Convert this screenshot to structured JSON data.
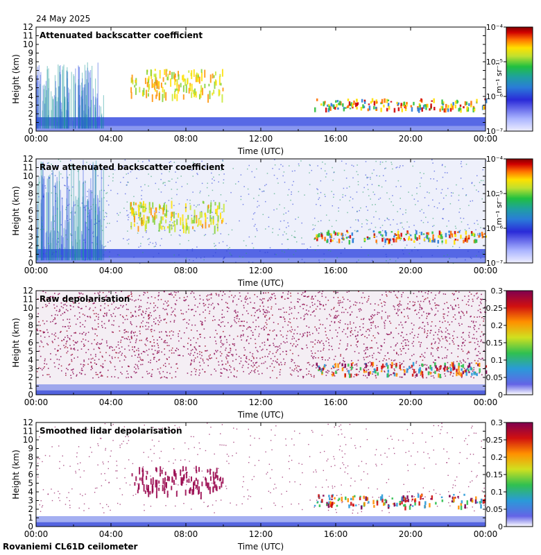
{
  "date": "24 May 2025",
  "footer": "Rovaniemi CL61D ceilometer",
  "chart_data": [
    {
      "type": "heatmap",
      "title": "Attenuated backscatter coefficient",
      "xlabel": "Time (UTC)",
      "ylabel": "Height (km)",
      "x_ticks": [
        "00:00",
        "04:00",
        "08:00",
        "12:00",
        "16:00",
        "20:00",
        "00:00"
      ],
      "y_ticks": [
        0,
        1,
        2,
        3,
        4,
        5,
        6,
        7,
        8,
        9,
        10,
        11,
        12
      ],
      "ylim": [
        0,
        12
      ],
      "colorbar": {
        "scale": "log",
        "range": [
          1e-07,
          0.0001
        ],
        "unit": "m⁻¹ sr⁻¹",
        "ticks": [
          "10⁻⁷",
          "10⁻⁶",
          "10⁻⁵",
          "10⁻⁴"
        ]
      }
    },
    {
      "type": "heatmap",
      "title": "Raw attenuated backscatter coefficient",
      "xlabel": "Time (UTC)",
      "ylabel": "Height (km)",
      "x_ticks": [
        "00:00",
        "04:00",
        "08:00",
        "12:00",
        "16:00",
        "20:00",
        "00:00"
      ],
      "y_ticks": [
        0,
        1,
        2,
        3,
        4,
        5,
        6,
        7,
        8,
        9,
        10,
        11,
        12
      ],
      "ylim": [
        0,
        12
      ],
      "colorbar": {
        "scale": "log",
        "range": [
          1e-07,
          0.0001
        ],
        "unit": "m⁻¹ sr⁻¹",
        "ticks": [
          "10⁻⁷",
          "10⁻⁶",
          "10⁻⁵",
          "10⁻⁴"
        ]
      }
    },
    {
      "type": "heatmap",
      "title": "Raw depolarisation",
      "xlabel": "Time (UTC)",
      "ylabel": "Height (km)",
      "x_ticks": [
        "00:00",
        "04:00",
        "08:00",
        "12:00",
        "16:00",
        "20:00",
        "00:00"
      ],
      "y_ticks": [
        0,
        1,
        2,
        3,
        4,
        5,
        6,
        7,
        8,
        9,
        10,
        11,
        12
      ],
      "ylim": [
        0,
        12
      ],
      "colorbar": {
        "scale": "linear",
        "range": [
          0,
          0.3
        ],
        "unit": "",
        "ticks": [
          "0",
          "0.05",
          "0.1",
          "0.15",
          "0.2",
          "0.25",
          "0.3"
        ]
      }
    },
    {
      "type": "heatmap",
      "title": "Smoothed lidar depolarisation",
      "xlabel": "Time (UTC)",
      "ylabel": "Height (km)",
      "x_ticks": [
        "00:00",
        "04:00",
        "08:00",
        "12:00",
        "16:00",
        "20:00",
        "00:00"
      ],
      "y_ticks": [
        0,
        1,
        2,
        3,
        4,
        5,
        6,
        7,
        8,
        9,
        10,
        11,
        12
      ],
      "ylim": [
        0,
        12
      ],
      "colorbar": {
        "scale": "linear",
        "range": [
          0,
          0.3
        ],
        "unit": "",
        "ticks": [
          "0",
          "0.05",
          "0.1",
          "0.15",
          "0.2",
          "0.25",
          "0.3"
        ]
      }
    }
  ]
}
